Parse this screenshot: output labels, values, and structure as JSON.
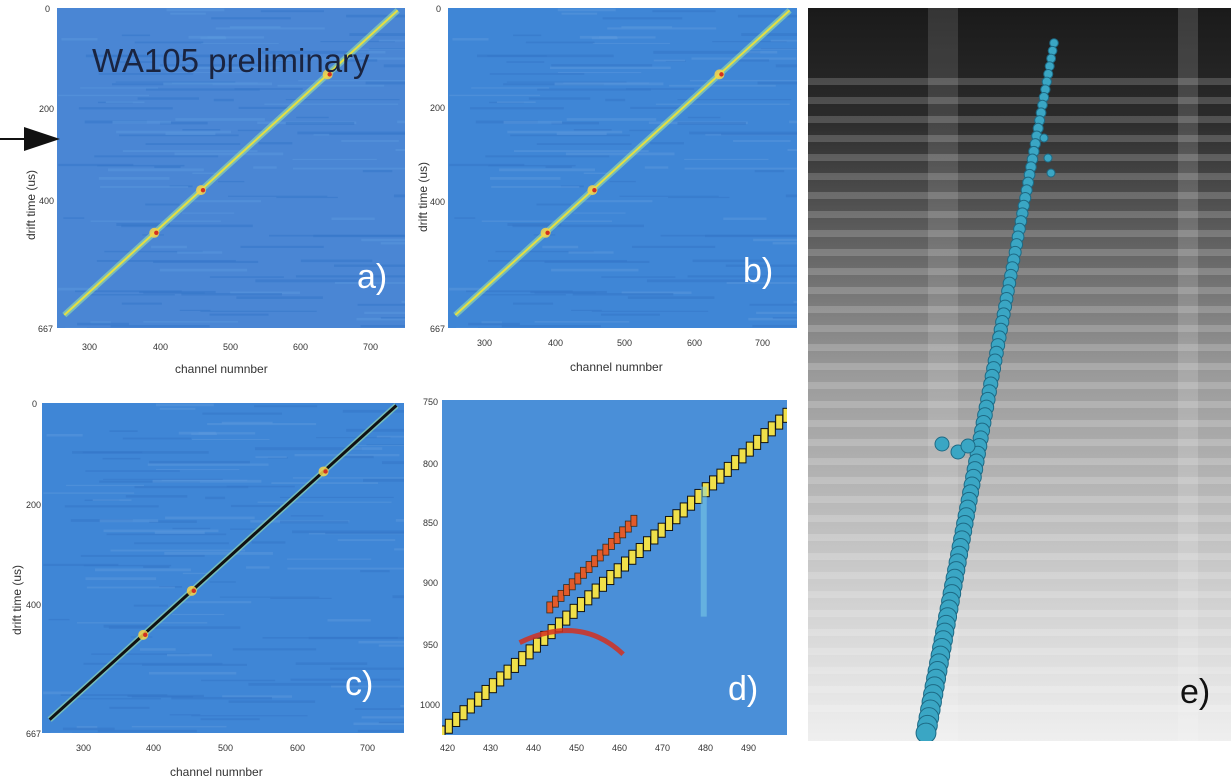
{
  "watermark": "WA105 preliminary",
  "panels": {
    "a": {
      "letter": "a)",
      "ylabel": "drift time (us)",
      "xlabel": "channel numnber",
      "yticks": [
        "0",
        "200",
        "400",
        "667"
      ],
      "xticks": [
        "300",
        "400",
        "500",
        "600",
        "700"
      ]
    },
    "b": {
      "letter": "b)",
      "ylabel": "drift time (us)",
      "xlabel": "channel numnber",
      "yticks": [
        "0",
        "200",
        "400",
        "667"
      ],
      "xticks": [
        "300",
        "400",
        "500",
        "600",
        "700"
      ]
    },
    "c": {
      "letter": "c)",
      "ylabel": "drift time (us)",
      "xlabel": "channel numnber",
      "yticks": [
        "0",
        "200",
        "400",
        "667"
      ],
      "xticks": [
        "300",
        "400",
        "500",
        "600",
        "700"
      ]
    },
    "d": {
      "letter": "d)",
      "yticks": [
        "750",
        "800",
        "850",
        "900",
        "950",
        "1000"
      ],
      "xticks": [
        "420",
        "430",
        "440",
        "450",
        "460",
        "470",
        "480",
        "490"
      ]
    },
    "e": {
      "letter": "e)"
    }
  },
  "colors": {
    "background_blue": "#3f86d6",
    "track": "#e6e040",
    "hit_red": "#d23020",
    "hit_black": "#111111",
    "cluster_cyan": "#3aa6c4"
  },
  "chart_data": [
    {
      "type": "heatmap",
      "panel": "a",
      "title": "",
      "xlabel": "channel numnber",
      "ylabel": "drift time (us)",
      "xlim": [
        270,
        745
      ],
      "ylim": [
        667,
        0
      ],
      "track": {
        "x": [
          280,
          735
        ],
        "y": [
          640,
          5
        ]
      }
    },
    {
      "type": "heatmap",
      "panel": "b",
      "title": "",
      "xlabel": "channel numnber",
      "ylabel": "drift time (us)",
      "xlim": [
        270,
        745
      ],
      "ylim": [
        667,
        0
      ],
      "track": {
        "x": [
          280,
          735
        ],
        "y": [
          640,
          5
        ]
      }
    },
    {
      "type": "heatmap",
      "panel": "c",
      "title": "",
      "xlabel": "channel numnber",
      "ylabel": "drift time (us)",
      "xlim": [
        270,
        745
      ],
      "ylim": [
        667,
        0
      ],
      "track": {
        "x": [
          280,
          735
        ],
        "y": [
          640,
          5
        ]
      }
    },
    {
      "type": "heatmap",
      "panel": "d",
      "title": "",
      "xlabel": "",
      "ylabel": "",
      "xlim": [
        420,
        500
      ],
      "ylim": [
        1035,
        745
      ],
      "track": {
        "x": [
          420,
          500
        ],
        "y": [
          1035,
          760
        ]
      }
    }
  ]
}
